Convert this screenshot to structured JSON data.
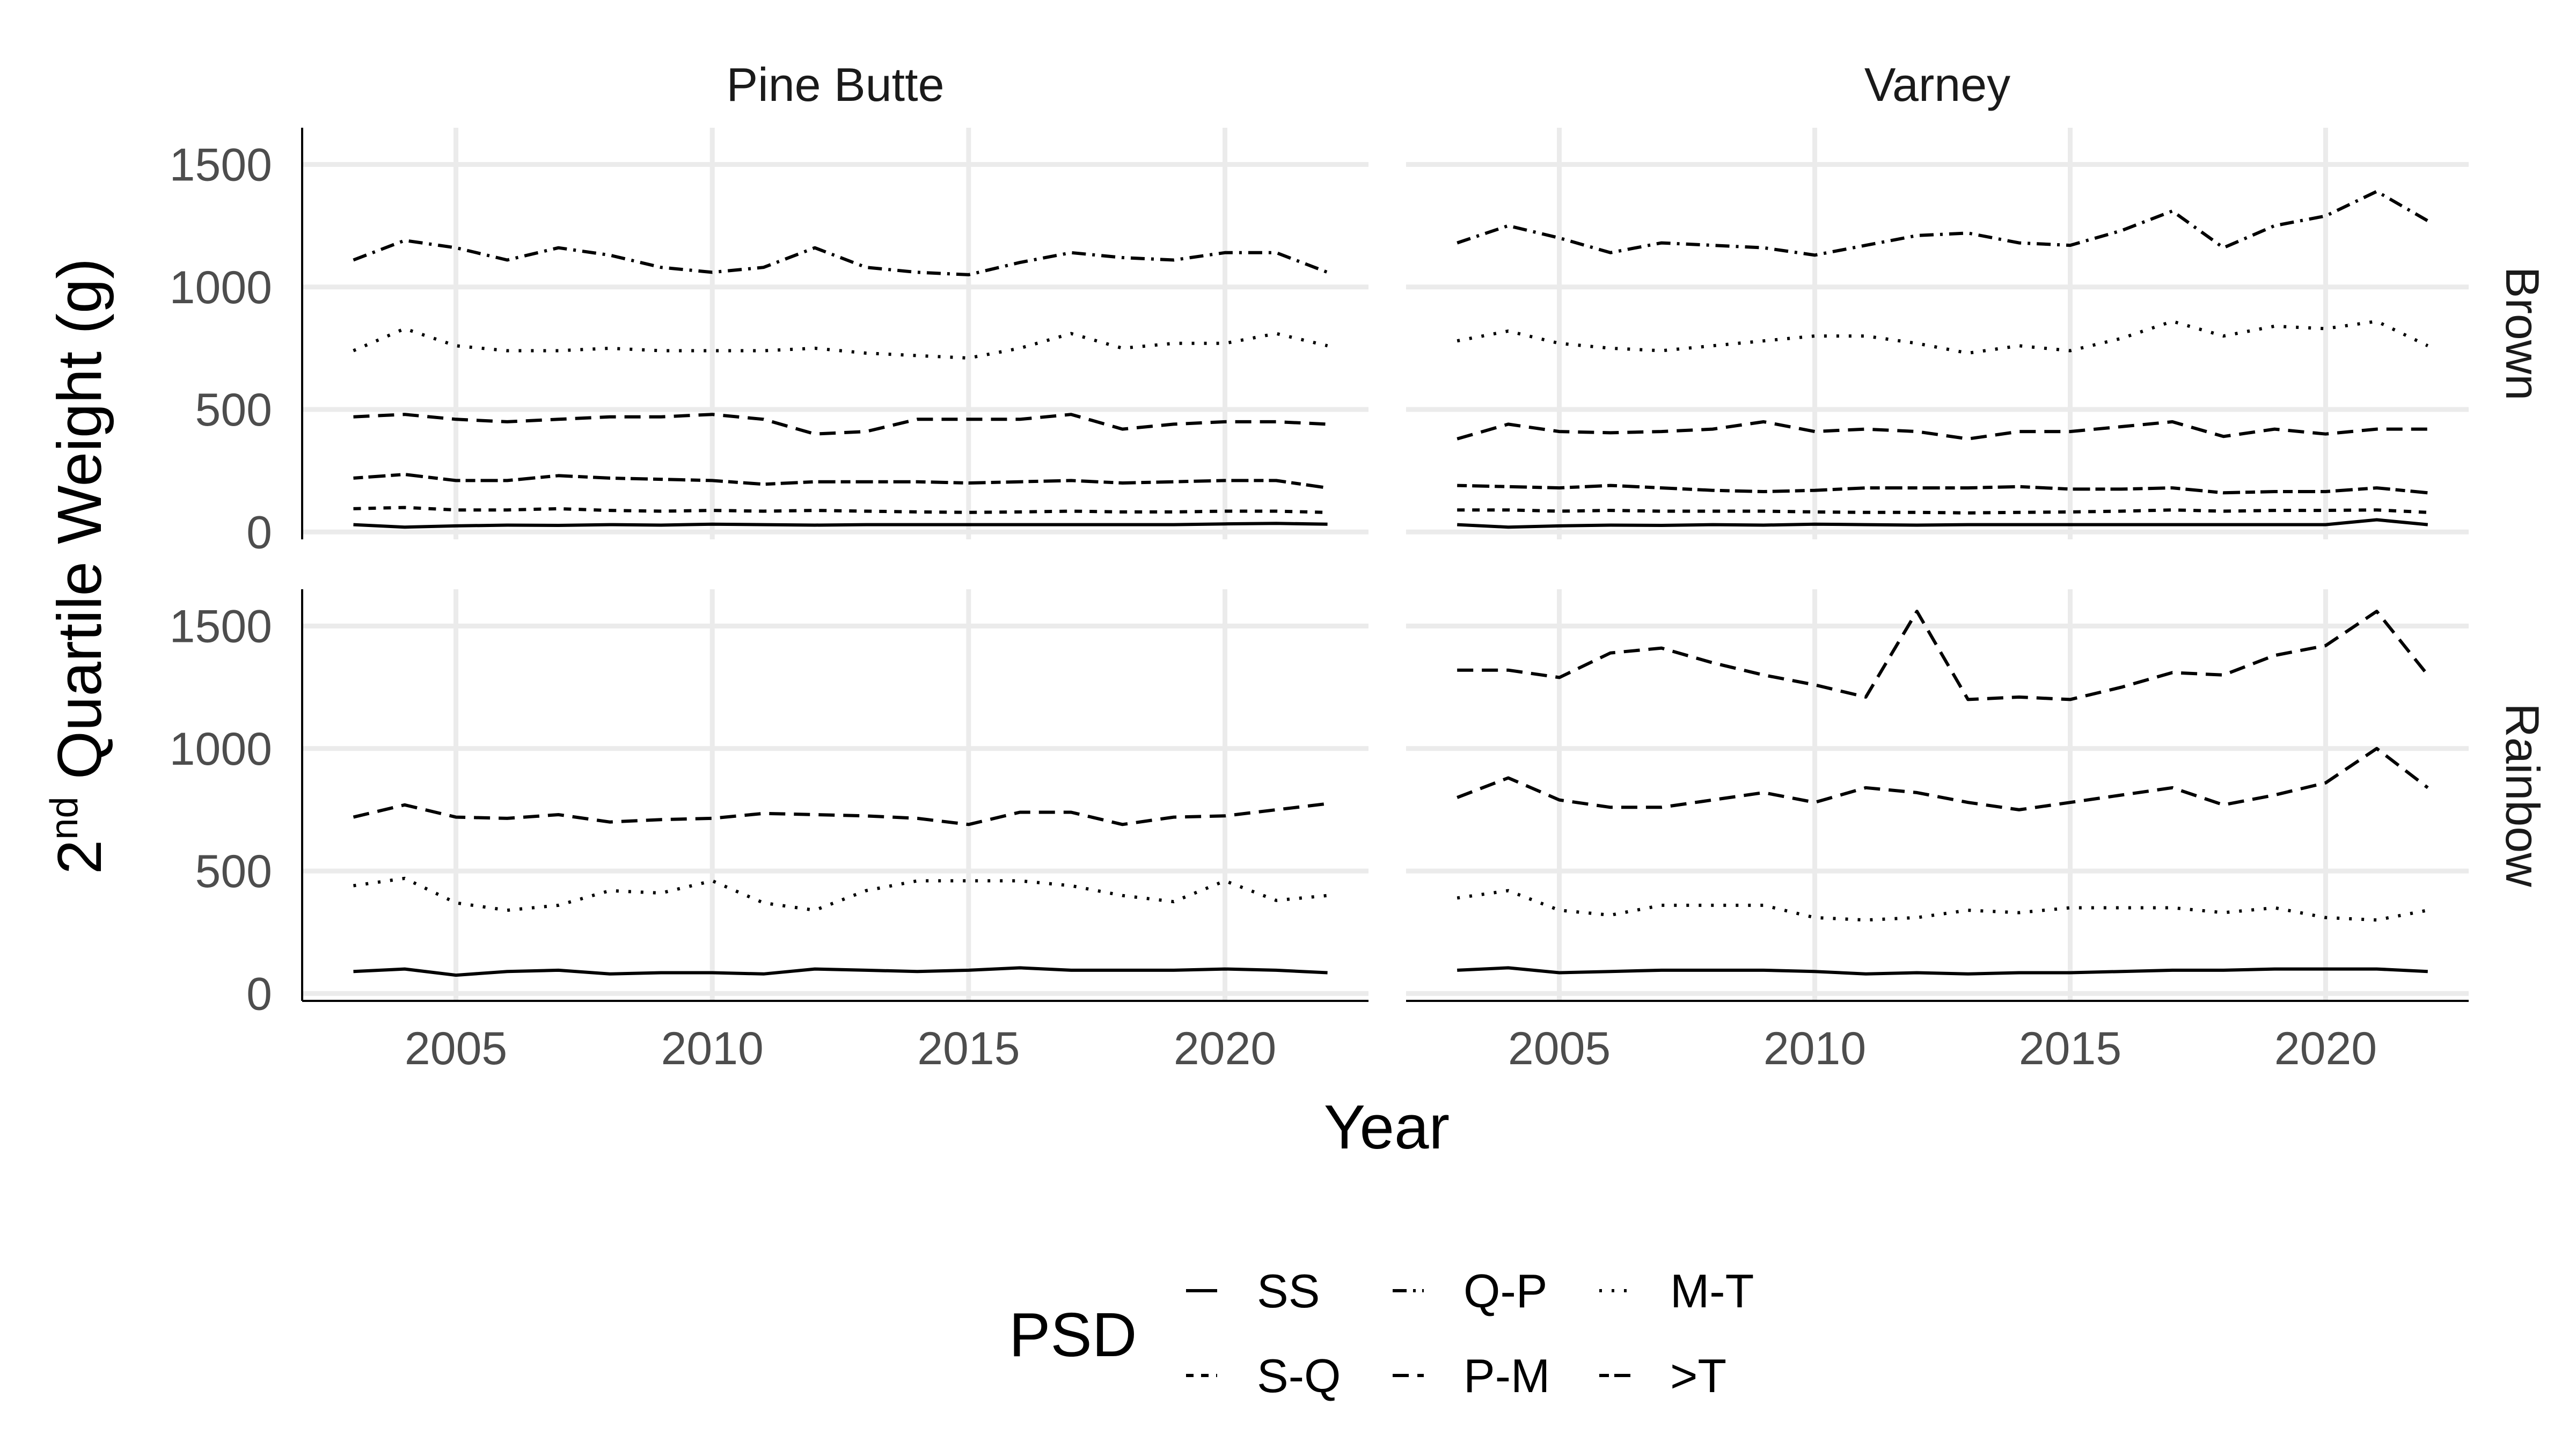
{
  "chart_data": {
    "type": "line",
    "facet_cols": [
      "Pine Butte",
      "Varney"
    ],
    "facet_rows": [
      "Brown",
      "Rainbow"
    ],
    "xlabel": "Year",
    "ylabel_sup": "nd",
    "ylabel_base": "2",
    "ylabel_rest": " Quartile Weight (g)",
    "x_ticks": [
      2005,
      2010,
      2015,
      2020
    ],
    "xlim": [
      2002.0,
      2022.8
    ],
    "y_ticks": [
      0,
      500,
      1000,
      1500
    ],
    "ylim": [
      -30,
      1650
    ],
    "grid": true,
    "legend": {
      "title": "PSD",
      "position": "bottom",
      "items": [
        {
          "label": "SS",
          "dash": "solid"
        },
        {
          "label": "S-Q",
          "dash": "dashed"
        },
        {
          "label": "Q-P",
          "dash": "dashdot"
        },
        {
          "label": "P-M",
          "dash": "longdash"
        },
        {
          "label": "M-T",
          "dash": "dotted"
        },
        {
          "label": ">T",
          "dash": "twodash"
        }
      ]
    },
    "x": [
      2003,
      2004,
      2005,
      2006,
      2007,
      2008,
      2009,
      2010,
      2011,
      2012,
      2013,
      2014,
      2015,
      2016,
      2017,
      2018,
      2019,
      2020,
      2021,
      2022
    ],
    "panels": [
      {
        "col": "Pine Butte",
        "row": "Brown",
        "series": [
          {
            "name": "SS",
            "values": [
              30,
              20,
              25,
              28,
              27,
              30,
              28,
              32,
              30,
              28,
              30,
              30,
              30,
              30,
              30,
              30,
              30,
              33,
              35,
              32
            ]
          },
          {
            "name": "S-Q",
            "values": [
              95,
              100,
              90,
              90,
              95,
              88,
              85,
              88,
              85,
              88,
              85,
              82,
              80,
              82,
              85,
              82,
              82,
              85,
              85,
              80
            ]
          },
          {
            "name": "Q-P",
            "values": [
              1110,
              1190,
              1160,
              1110,
              1160,
              1130,
              1080,
              1060,
              1080,
              1160,
              1080,
              1060,
              1050,
              1100,
              1140,
              1120,
              1110,
              1140,
              1140,
              1060
            ]
          },
          {
            "name": "P-M",
            "values": [
              470,
              480,
              460,
              450,
              460,
              470,
              470,
              480,
              460,
              400,
              410,
              460,
              460,
              460,
              480,
              420,
              440,
              450,
              450,
              440
            ]
          },
          {
            "name": "M-T",
            "values": [
              740,
              830,
              760,
              740,
              740,
              750,
              740,
              740,
              740,
              750,
              730,
              720,
              710,
              750,
              810,
              750,
              770,
              770,
              810,
              760
            ]
          },
          {
            "name": ">T",
            "values": [
              220,
              235,
              210,
              210,
              230,
              220,
              215,
              210,
              195,
              205,
              205,
              205,
              200,
              205,
              210,
              200,
              205,
              210,
              210,
              180
            ]
          }
        ]
      },
      {
        "col": "Varney",
        "row": "Brown",
        "series": [
          {
            "name": "SS",
            "values": [
              30,
              20,
              25,
              28,
              27,
              30,
              28,
              32,
              30,
              28,
              30,
              30,
              30,
              30,
              30,
              30,
              30,
              30,
              50,
              30
            ]
          },
          {
            "name": "S-Q",
            "values": [
              90,
              90,
              85,
              88,
              85,
              85,
              85,
              82,
              80,
              80,
              78,
              80,
              82,
              85,
              90,
              85,
              88,
              88,
              90,
              80
            ]
          },
          {
            "name": "Q-P",
            "values": [
              1180,
              1250,
              1200,
              1140,
              1180,
              1170,
              1160,
              1130,
              1170,
              1210,
              1220,
              1180,
              1170,
              1230,
              1310,
              1160,
              1250,
              1290,
              1390,
              1270
            ]
          },
          {
            "name": "P-M",
            "values": [
              380,
              440,
              410,
              405,
              410,
              420,
              450,
              410,
              420,
              410,
              380,
              410,
              410,
              430,
              450,
              390,
              420,
              400,
              420,
              420
            ]
          },
          {
            "name": "M-T",
            "values": [
              780,
              820,
              770,
              750,
              740,
              760,
              780,
              800,
              800,
              770,
              730,
              760,
              740,
              790,
              860,
              800,
              840,
              830,
              860,
              760
            ]
          },
          {
            "name": ">T",
            "values": [
              190,
              185,
              180,
              190,
              180,
              170,
              165,
              170,
              180,
              180,
              180,
              185,
              175,
              175,
              180,
              160,
              165,
              165,
              180,
              160
            ]
          }
        ]
      },
      {
        "col": "Pine Butte",
        "row": "Rainbow",
        "series": [
          {
            "name": "SS",
            "values": [
              90,
              100,
              75,
              90,
              95,
              80,
              85,
              85,
              80,
              100,
              95,
              90,
              95,
              105,
              95,
              95,
              95,
              100,
              95,
              85
            ]
          },
          {
            "name": "P-M",
            "values": [
              720,
              770,
              720,
              715,
              730,
              700,
              710,
              715,
              735,
              730,
              725,
              715,
              690,
              740,
              740,
              690,
              720,
              725,
              750,
              775
            ]
          },
          {
            "name": "M-T",
            "values": [
              440,
              470,
              370,
              340,
              360,
              420,
              410,
              460,
              370,
              340,
              420,
              460,
              460,
              460,
              440,
              400,
              375,
              460,
              380,
              400
            ]
          }
        ]
      },
      {
        "col": "Varney",
        "row": "Rainbow",
        "series": [
          {
            "name": "SS",
            "values": [
              95,
              105,
              85,
              90,
              95,
              95,
              95,
              90,
              80,
              85,
              80,
              85,
              85,
              90,
              95,
              95,
              100,
              100,
              100,
              90
            ]
          },
          {
            "name": "P-M",
            "values": [
              1320,
              1320,
              1290,
              1390,
              1410,
              1350,
              1300,
              1260,
              1210,
              1560,
              1200,
              1210,
              1200,
              1250,
              1310,
              1300,
              1380,
              1420,
              1560,
              1300
            ]
          },
          {
            "name": "P-M",
            "values": [
              800,
              880,
              790,
              760,
              760,
              790,
              820,
              780,
              840,
              820,
              780,
              750,
              780,
              810,
              840,
              770,
              810,
              860,
              1000,
              840
            ]
          },
          {
            "name": "M-T",
            "values": [
              390,
              420,
              340,
              320,
              360,
              360,
              360,
              310,
              300,
              310,
              340,
              330,
              350,
              350,
              350,
              330,
              350,
              310,
              300,
              340
            ]
          }
        ]
      }
    ]
  }
}
